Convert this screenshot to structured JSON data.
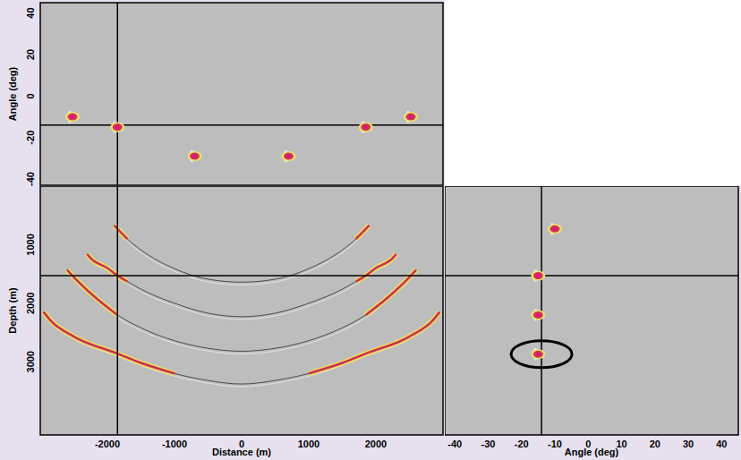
{
  "chart_data": [
    {
      "type": "scatter",
      "ylabel": "Angle (deg)",
      "xlim": [
        -3000,
        3000
      ],
      "ylim": [
        -43,
        45
      ],
      "yticks": [
        -40,
        -20,
        0,
        20,
        40
      ],
      "tick_labels": "y",
      "x": [
        -2520,
        -1850,
        -700,
        700,
        1850,
        2520
      ],
      "values": [
        -10,
        -15,
        -29,
        -29,
        -15,
        -10
      ],
      "color": "#d81c78",
      "crosshair": {
        "x": -1850,
        "y": -14
      }
    },
    {
      "type": "line",
      "xlabel": "Distance (m)",
      "ylabel": "Depth (m)",
      "xlim": [
        -3000,
        3000
      ],
      "ylim": [
        4250,
        0
      ],
      "xticks": [
        -2000,
        -1000,
        0,
        1000,
        2000
      ],
      "yticks": [
        1000,
        2000,
        3000
      ],
      "series": [
        {
          "color": "#c8324e",
          "x": [
            -1900,
            -1800,
            -1700,
            -1500,
            -1000,
            -500,
            0,
            500,
            1000,
            1500,
            1700,
            1800,
            1900
          ],
          "values": [
            670,
            790,
            905,
            1090,
            1410,
            1590,
            1640,
            1590,
            1410,
            1090,
            905,
            790,
            670
          ],
          "highlight": [
            [
              -1900,
              -1700
            ],
            [
              1700,
              1900
            ]
          ]
        },
        {
          "color": "#c8324e",
          "x": [
            -2300,
            -2250,
            -2000,
            -1850,
            -1700,
            -1500,
            -1000,
            -500,
            0,
            500,
            1000,
            1500,
            1700,
            1850,
            2000,
            2250,
            2300
          ],
          "values": [
            1160,
            1230,
            1400,
            1530,
            1630,
            1760,
            2000,
            2170,
            2230,
            2170,
            2000,
            1760,
            1630,
            1530,
            1400,
            1230,
            1160
          ],
          "highlight": [
            [
              -2300,
              -1700
            ],
            [
              1700,
              2300
            ]
          ]
        },
        {
          "color": "#c8324e",
          "x": [
            -2600,
            -2520,
            -2200,
            -1850,
            -1500,
            -1000,
            -500,
            0,
            500,
            1000,
            1500,
            1850,
            2200,
            2520,
            2600
          ],
          "values": [
            1430,
            1530,
            1880,
            2200,
            2420,
            2640,
            2770,
            2820,
            2770,
            2640,
            2420,
            2200,
            1880,
            1530,
            1430
          ],
          "highlight": [
            [
              -2600,
              -1850
            ],
            [
              1850,
              2600
            ]
          ]
        },
        {
          "color": "#c8324e",
          "x": [
            -2950,
            -2850,
            -2500,
            -1850,
            -1500,
            -1000,
            -500,
            0,
            500,
            1000,
            1500,
            1850,
            2500,
            2850,
            2950
          ],
          "values": [
            2150,
            2290,
            2570,
            2860,
            3020,
            3200,
            3320,
            3380,
            3320,
            3200,
            3020,
            2860,
            2570,
            2290,
            2150
          ],
          "highlight": [
            [
              -2950,
              -1000
            ],
            [
              1000,
              2950
            ]
          ]
        }
      ],
      "crosshair": {
        "x": -1850,
        "y": 1530
      }
    },
    {
      "type": "scatter",
      "xlabel": "Angle (deg)",
      "xlim": [
        -43,
        45
      ],
      "ylim": [
        4250,
        0
      ],
      "xticks": [
        -40,
        -30,
        -20,
        -10,
        0,
        10,
        20,
        30,
        40
      ],
      "tick_labels": "x",
      "x": [
        -10,
        -15,
        -15,
        -15
      ],
      "values": [
        730,
        1530,
        2200,
        2870
      ],
      "color": "#d81c78",
      "crosshair": {
        "x": -14,
        "y": 1530
      },
      "circled": {
        "x": -14,
        "y": 2870
      }
    }
  ]
}
